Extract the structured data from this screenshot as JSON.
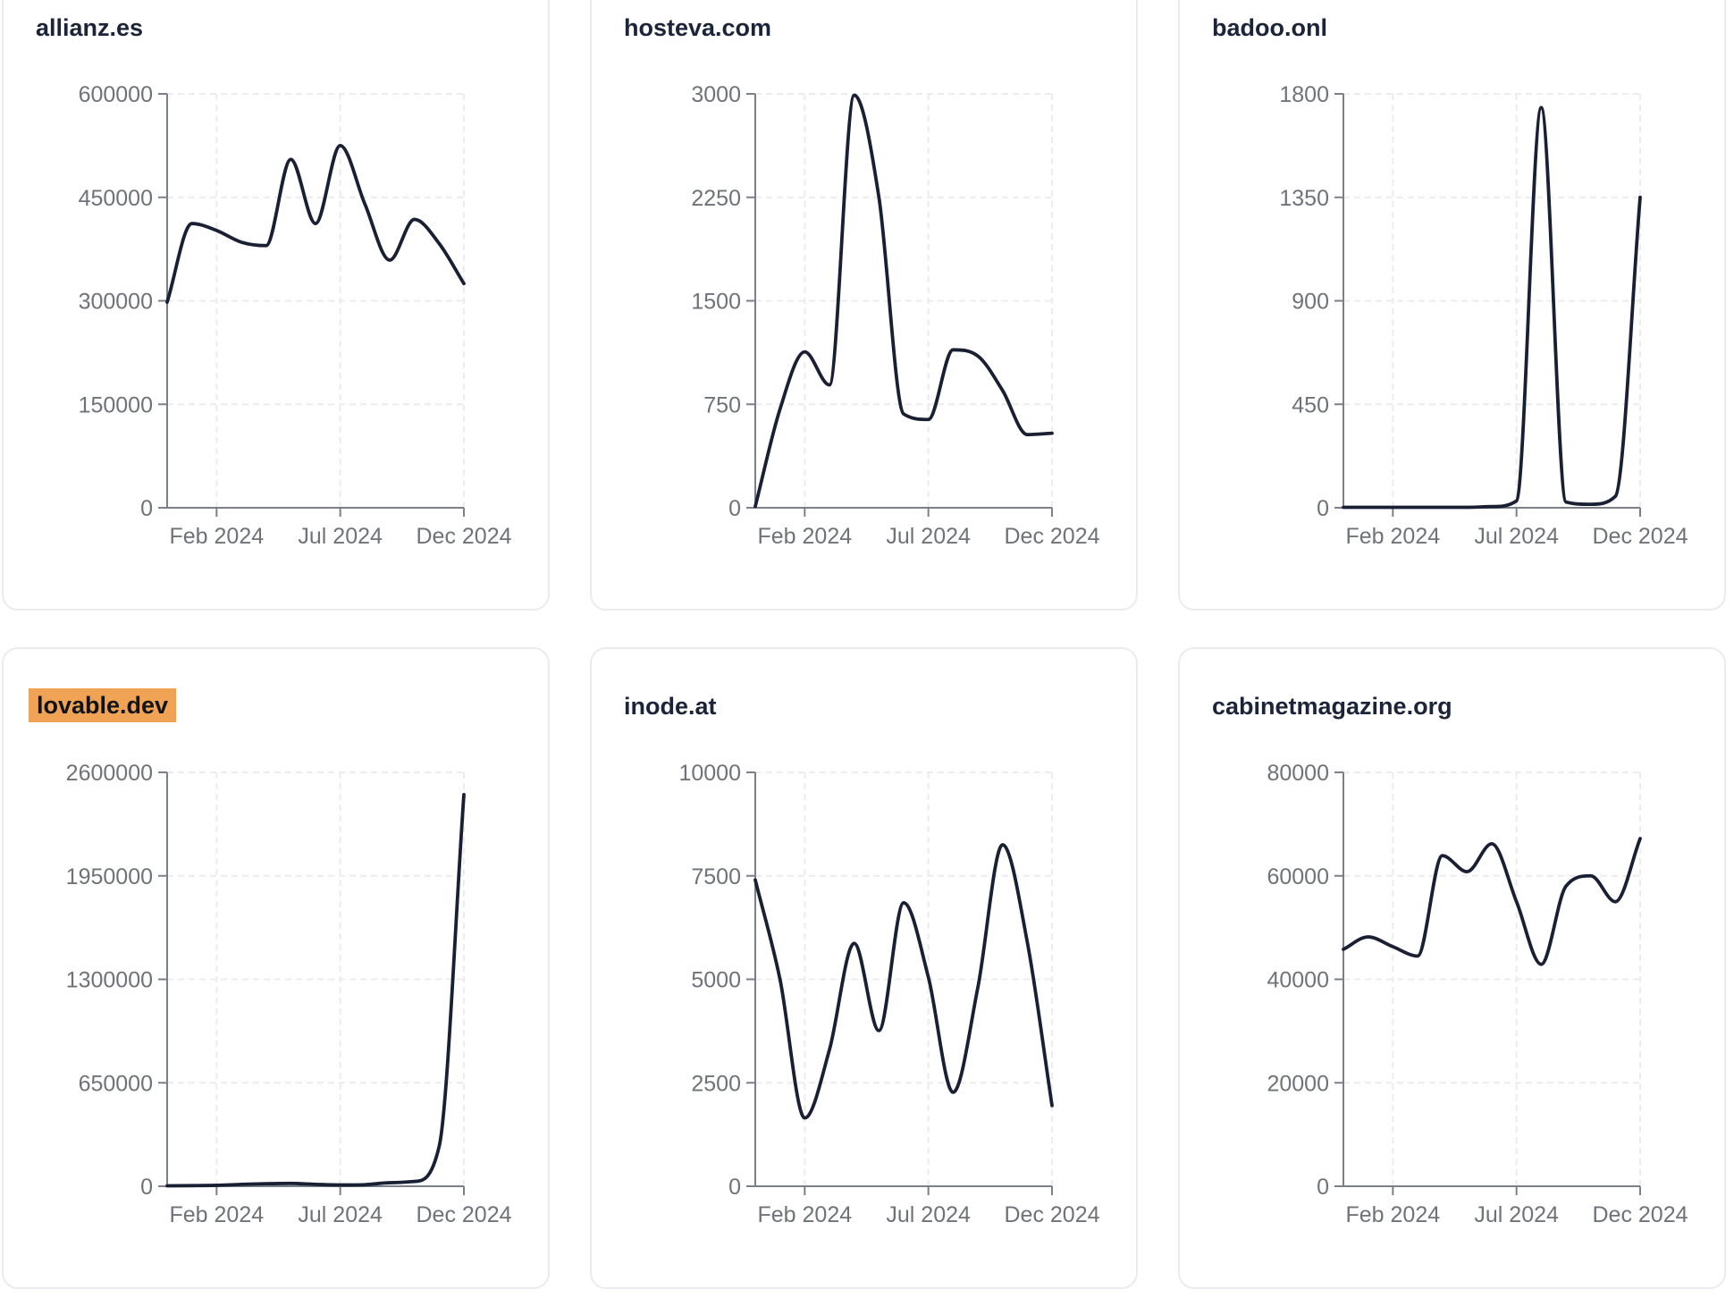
{
  "style": {
    "line_color": "#1a2033",
    "grid_color": "#ececee",
    "axis_color": "#7b7f88",
    "label_color": "#6e7379",
    "title_color": "#1b2438",
    "highlight_color": "#f0a355",
    "card_border_color": "#e9ebf1",
    "background": "#ffffff"
  },
  "chart_data": [
    {
      "type": "line",
      "title": "allianz.es",
      "title_highlighted": false,
      "x": [
        "Dec 2023",
        "Jan 2024",
        "Feb 2024",
        "Mar 2024",
        "Apr 2024",
        "May 2024",
        "Jun 2024",
        "Jul 2024",
        "Aug 2024",
        "Sep 2024",
        "Oct 2024",
        "Nov 2024",
        "Dec 2024"
      ],
      "values": [
        298000,
        412000,
        402000,
        385000,
        380000,
        505000,
        412000,
        525000,
        440000,
        359000,
        418000,
        383000,
        325000
      ],
      "ylim": [
        0,
        600000
      ],
      "yticks": [
        0,
        150000,
        300000,
        450000,
        600000
      ],
      "xtick_labels": [
        "Feb 2024",
        "Jul 2024",
        "Dec 2024"
      ],
      "xtick_indices": [
        2,
        7,
        12
      ],
      "grid": "dashed",
      "legend": "none"
    },
    {
      "type": "line",
      "title": "hosteva.com",
      "title_highlighted": false,
      "x": [
        "Dec 2023",
        "Jan 2024",
        "Feb 2024",
        "Mar 2024",
        "Apr 2024",
        "May 2024",
        "Jun 2024",
        "Jul 2024",
        "Aug 2024",
        "Sep 2024",
        "Oct 2024",
        "Nov 2024",
        "Dec 2024"
      ],
      "values": [
        10,
        715,
        1130,
        890,
        2990,
        2250,
        680,
        640,
        1145,
        1100,
        850,
        530,
        540
      ],
      "ylim": [
        0,
        3000
      ],
      "yticks": [
        0,
        750,
        1500,
        2250,
        3000
      ],
      "xtick_labels": [
        "Feb 2024",
        "Jul 2024",
        "Dec 2024"
      ],
      "xtick_indices": [
        2,
        7,
        12
      ],
      "grid": "dashed",
      "legend": "none"
    },
    {
      "type": "line",
      "title": "badoo.onl",
      "title_highlighted": false,
      "x": [
        "Dec 2023",
        "Jan 2024",
        "Feb 2024",
        "Mar 2024",
        "Apr 2024",
        "May 2024",
        "Jun 2024",
        "Jul 2024",
        "Aug 2024",
        "Sep 2024",
        "Oct 2024",
        "Nov 2024",
        "Dec 2024"
      ],
      "values": [
        2,
        2,
        2,
        2,
        2,
        2,
        5,
        30,
        1740,
        25,
        15,
        50,
        1350
      ],
      "ylim": [
        0,
        1800
      ],
      "yticks": [
        0,
        450,
        900,
        1350,
        1800
      ],
      "xtick_labels": [
        "Feb 2024",
        "Jul 2024",
        "Dec 2024"
      ],
      "xtick_indices": [
        2,
        7,
        12
      ],
      "grid": "dashed",
      "legend": "none"
    },
    {
      "type": "line",
      "title": "lovable.dev",
      "title_highlighted": true,
      "x": [
        "Dec 2023",
        "Jan 2024",
        "Feb 2024",
        "Mar 2024",
        "Apr 2024",
        "May 2024",
        "Jun 2024",
        "Jul 2024",
        "Aug 2024",
        "Sep 2024",
        "Oct 2024",
        "Nov 2024",
        "Dec 2024"
      ],
      "values": [
        3000,
        4000,
        6000,
        12000,
        16000,
        18000,
        12000,
        8000,
        10000,
        22000,
        30000,
        250000,
        2460000
      ],
      "ylim": [
        0,
        2600000
      ],
      "yticks": [
        0,
        650000,
        1300000,
        1950000,
        2600000
      ],
      "xtick_labels": [
        "Feb 2024",
        "Jul 2024",
        "Dec 2024"
      ],
      "xtick_indices": [
        2,
        7,
        12
      ],
      "grid": "dashed",
      "legend": "none"
    },
    {
      "type": "line",
      "title": "inode.at",
      "title_highlighted": false,
      "x": [
        "Dec 2023",
        "Jan 2024",
        "Feb 2024",
        "Mar 2024",
        "Apr 2024",
        "May 2024",
        "Jun 2024",
        "Jul 2024",
        "Aug 2024",
        "Sep 2024",
        "Oct 2024",
        "Nov 2024",
        "Dec 2024"
      ],
      "values": [
        7400,
        5000,
        1650,
        3300,
        5870,
        3760,
        6850,
        5050,
        2270,
        4800,
        8250,
        5900,
        1950
      ],
      "ylim": [
        0,
        10000
      ],
      "yticks": [
        0,
        2500,
        5000,
        7500,
        10000
      ],
      "xtick_labels": [
        "Feb 2024",
        "Jul 2024",
        "Dec 2024"
      ],
      "xtick_indices": [
        2,
        7,
        12
      ],
      "grid": "dashed",
      "legend": "none"
    },
    {
      "type": "line",
      "title": "cabinetmagazine.org",
      "title_highlighted": false,
      "x": [
        "Dec 2023",
        "Jan 2024",
        "Feb 2024",
        "Mar 2024",
        "Apr 2024",
        "May 2024",
        "Jun 2024",
        "Jul 2024",
        "Aug 2024",
        "Sep 2024",
        "Oct 2024",
        "Nov 2024",
        "Dec 2024"
      ],
      "values": [
        45800,
        48200,
        46300,
        44500,
        63900,
        60800,
        66200,
        55000,
        42900,
        58000,
        60000,
        55000,
        67200
      ],
      "ylim": [
        0,
        80000
      ],
      "yticks": [
        0,
        20000,
        40000,
        60000,
        80000
      ],
      "xtick_labels": [
        "Feb 2024",
        "Jul 2024",
        "Dec 2024"
      ],
      "xtick_indices": [
        2,
        7,
        12
      ],
      "grid": "dashed",
      "legend": "none"
    }
  ]
}
